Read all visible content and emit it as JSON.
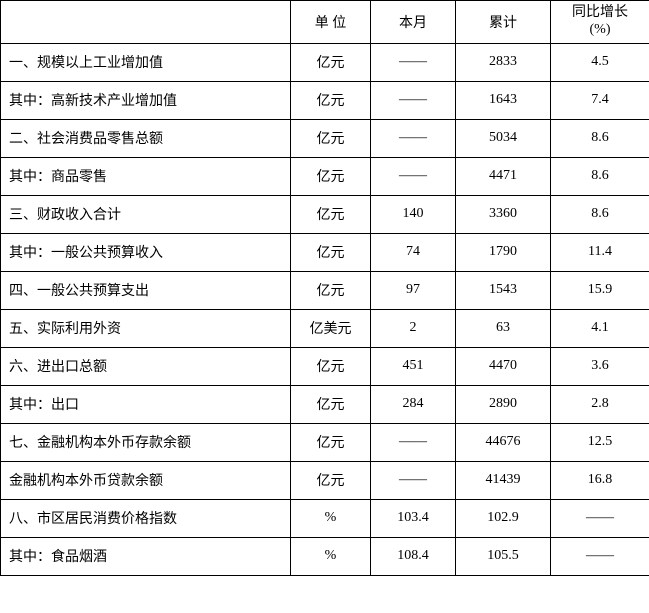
{
  "table": {
    "headers": {
      "label": "",
      "unit": "单 位",
      "month": "本月",
      "total": "累计",
      "yoy_line1": "同比增长",
      "yoy_line2": "(%)"
    },
    "rows": [
      {
        "label": "一、规模以上工业增加值",
        "indent_class": "",
        "unit": "亿元",
        "month": "——",
        "total": "2833",
        "yoy": "4.5"
      },
      {
        "label": "其中：高新技术产业增加值",
        "indent_class": "indent-1",
        "unit": "亿元",
        "month": "——",
        "total": "1643",
        "yoy": "7.4"
      },
      {
        "label": "二、社会消费品零售总额",
        "indent_class": "",
        "unit": "亿元",
        "month": "——",
        "total": "5034",
        "yoy": "8.6"
      },
      {
        "label": "其中：商品零售",
        "indent_class": "indent-1",
        "unit": "亿元",
        "month": "——",
        "total": "4471",
        "yoy": "8.6"
      },
      {
        "label": "三、财政收入合计",
        "indent_class": "",
        "unit": "亿元",
        "month": "140",
        "total": "3360",
        "yoy": "8.6"
      },
      {
        "label": "其中：一般公共预算收入",
        "indent_class": "indent-1",
        "unit": "亿元",
        "month": "74",
        "total": "1790",
        "yoy": "11.4"
      },
      {
        "label": "四、一般公共预算支出",
        "indent_class": "",
        "unit": "亿元",
        "month": "97",
        "total": "1543",
        "yoy": "15.9"
      },
      {
        "label": "五、实际利用外资",
        "indent_class": "",
        "unit": "亿美元",
        "month": "2",
        "total": "63",
        "yoy": "4.1"
      },
      {
        "label": "六、进出口总额",
        "indent_class": "",
        "unit": "亿元",
        "month": "451",
        "total": "4470",
        "yoy": "3.6"
      },
      {
        "label": "其中：出口",
        "indent_class": "indent-1",
        "unit": "亿元",
        "month": "284",
        "total": "2890",
        "yoy": "2.8"
      },
      {
        "label": "七、金融机构本外币存款余额",
        "indent_class": "",
        "unit": "亿元",
        "month": "——",
        "total": "44676",
        "yoy": "12.5"
      },
      {
        "label": "金融机构本外币贷款余额",
        "indent_class": "indent-2",
        "unit": "亿元",
        "month": "——",
        "total": "41439",
        "yoy": "16.8"
      },
      {
        "label": "八、市区居民消费价格指数",
        "indent_class": "",
        "unit": "%",
        "month": "103.4",
        "total": "102.9",
        "yoy": "——"
      },
      {
        "label": "其中：食品烟酒",
        "indent_class": "indent-1",
        "unit": "%",
        "month": "108.4",
        "total": "105.5",
        "yoy": "——"
      }
    ]
  }
}
